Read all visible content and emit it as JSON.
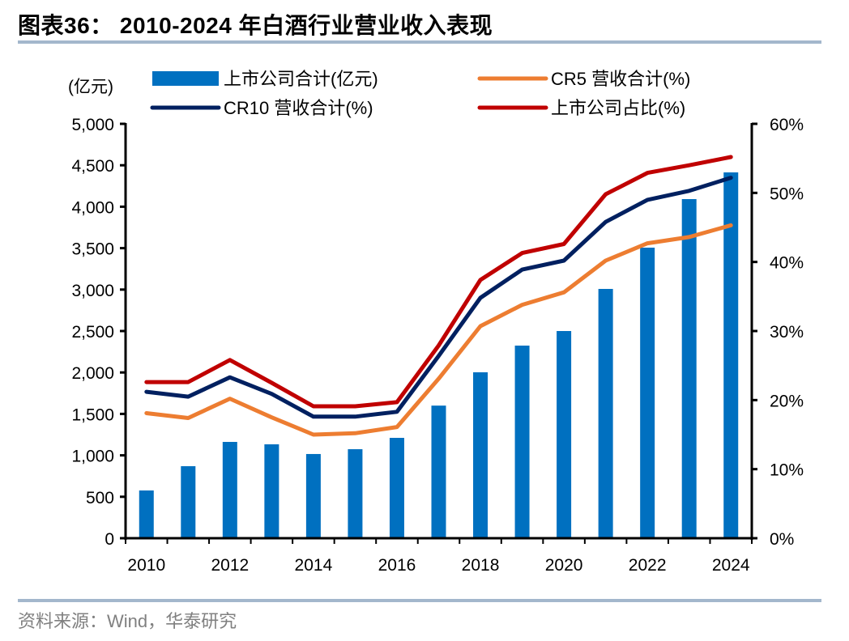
{
  "header": {
    "title": "图表36：  2010-2024 年白酒行业营业收入表现"
  },
  "footer": {
    "source": "资料来源：Wind，华泰研究"
  },
  "chart_data": {
    "type": "bar+line",
    "title": "2010-2024 年白酒行业营业收入表现",
    "categories": [
      "2010",
      "2011",
      "2012",
      "2013",
      "2014",
      "2015",
      "2016",
      "2017",
      "2018",
      "2019",
      "2020",
      "2021",
      "2022",
      "2023",
      "2024"
    ],
    "x_tick_labels": [
      "2010",
      "2012",
      "2014",
      "2016",
      "2018",
      "2020",
      "2022",
      "2024"
    ],
    "left_axis": {
      "unit_label": "(亿元)",
      "ylim": [
        0,
        5000
      ],
      "ticks": [
        0,
        500,
        1000,
        1500,
        2000,
        2500,
        3000,
        3500,
        4000,
        4500,
        5000
      ],
      "tick_labels": [
        "0",
        "500",
        "1,000",
        "1,500",
        "2,000",
        "2,500",
        "3,000",
        "3,500",
        "4,000",
        "4,500",
        "5,000"
      ]
    },
    "right_axis": {
      "ylim": [
        0,
        60
      ],
      "ticks": [
        0,
        10,
        20,
        30,
        40,
        50,
        60
      ],
      "tick_labels": [
        "0%",
        "10%",
        "20%",
        "30%",
        "40%",
        "50%",
        "60%"
      ]
    },
    "series": [
      {
        "name": "上市公司合计(亿元)",
        "type": "bar",
        "axis": "left",
        "color": "#0070c0",
        "values": [
          576,
          869,
          1162,
          1133,
          1016,
          1074,
          1211,
          1600,
          2002,
          2324,
          2500,
          3008,
          3506,
          4092,
          4414
        ]
      },
      {
        "name": "CR5 营收合计(%)",
        "type": "line",
        "axis": "right",
        "color": "#ed7d31",
        "values": [
          18.1,
          17.4,
          20.2,
          17.5,
          15.0,
          15.2,
          16.1,
          23.1,
          30.7,
          33.8,
          35.6,
          40.2,
          42.7,
          43.6,
          45.3
        ]
      },
      {
        "name": "CR10 营收合计(%)",
        "type": "line",
        "axis": "right",
        "color": "#002060",
        "values": [
          21.2,
          20.5,
          23.3,
          20.9,
          17.6,
          17.6,
          18.3,
          26.4,
          34.8,
          38.9,
          40.2,
          45.8,
          49.0,
          50.3,
          52.2
        ]
      },
      {
        "name": "上市公司占比(%)",
        "type": "line",
        "axis": "right",
        "color": "#c00000",
        "values": [
          22.6,
          22.6,
          25.8,
          22.5,
          19.1,
          19.1,
          19.7,
          27.9,
          37.4,
          41.3,
          42.6,
          49.8,
          52.9,
          54.0,
          55.2
        ]
      }
    ],
    "legend": {
      "placement": "top",
      "items": [
        {
          "label": "上市公司合计(亿元)",
          "kind": "bar",
          "color": "#0070c0"
        },
        {
          "label": "CR5 营收合计(%)",
          "kind": "line",
          "color": "#ed7d31"
        },
        {
          "label": "CR10 营收合计(%)",
          "kind": "line",
          "color": "#002060"
        },
        {
          "label": "上市公司占比(%)",
          "kind": "line",
          "color": "#c00000"
        }
      ]
    },
    "grid": false
  }
}
